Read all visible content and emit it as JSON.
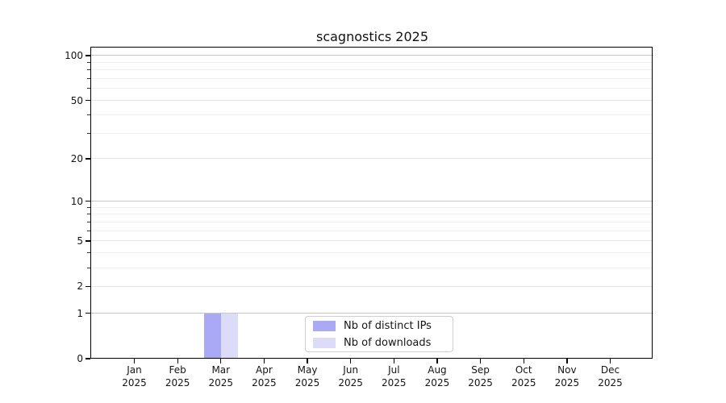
{
  "chart_data": {
    "type": "bar",
    "title": "scagnostics 2025",
    "x_axis": {
      "months": [
        "Jan",
        "Feb",
        "Mar",
        "Apr",
        "May",
        "Jun",
        "Jul",
        "Aug",
        "Sep",
        "Oct",
        "Nov",
        "Dec"
      ],
      "year_label": "2025"
    },
    "y_axis": {
      "scale": "log1p",
      "major_ticks": [
        0,
        1,
        2,
        5,
        10,
        20,
        50,
        100
      ],
      "minor_ticks": [
        3,
        4,
        6,
        7,
        8,
        9,
        30,
        40,
        60,
        70,
        80,
        90
      ],
      "max_value": 113
    },
    "series": [
      {
        "name": "Nb of distinct IPs",
        "color": "#a9a9f6",
        "values": [
          0,
          0,
          1,
          0,
          0,
          0,
          0,
          0,
          0,
          0,
          0,
          0
        ]
      },
      {
        "name": "Nb of downloads",
        "color": "#dcdcf8",
        "values": [
          0,
          0,
          1,
          0,
          0,
          0,
          0,
          0,
          0,
          0,
          0,
          0
        ]
      }
    ],
    "grid": {
      "decade_color": "#c6c6c6",
      "major_color": "#e3e3e3",
      "minor_color": "#f1f1f1",
      "on": true
    },
    "legend_position": "lower center",
    "background": "#ffffff"
  }
}
